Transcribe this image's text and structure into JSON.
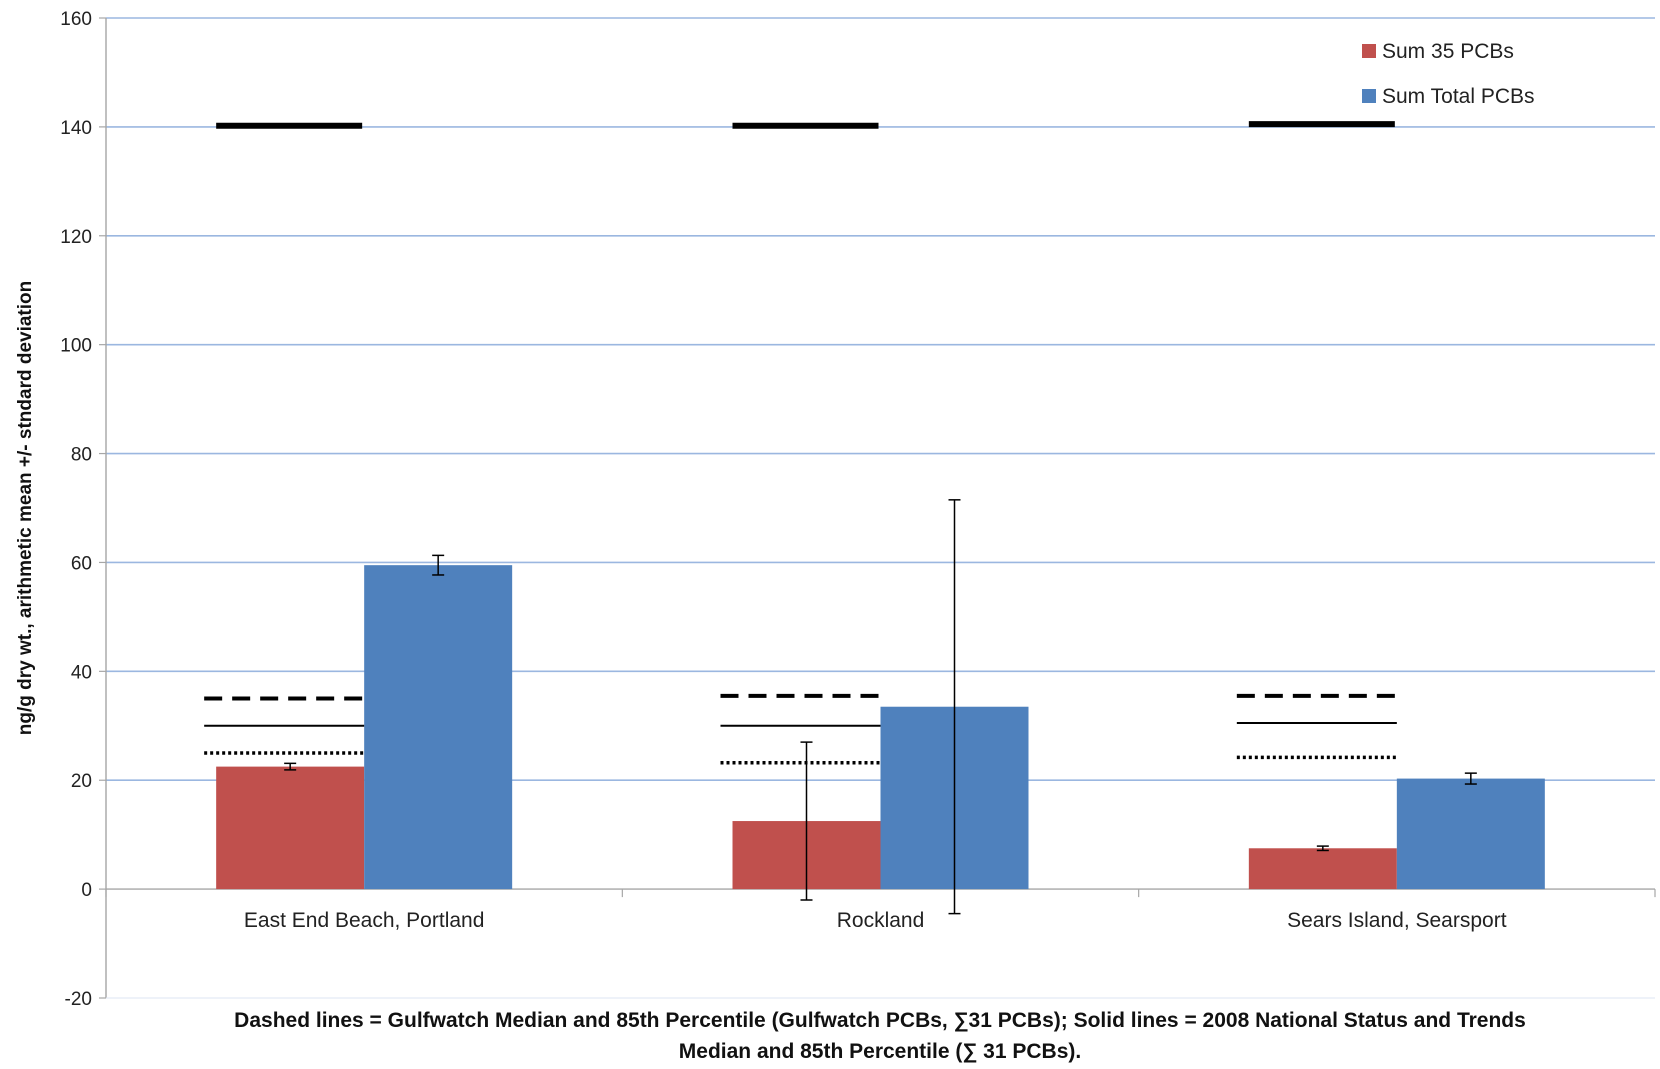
{
  "chart_data": {
    "type": "bar",
    "ylabel": "ng/g dry wt., arithmetic mean +/- stndard deviation",
    "xlabel": "",
    "ylim": [
      -20,
      160
    ],
    "y_ticks": [
      "160",
      "140",
      "120",
      "100",
      "80",
      "60",
      "40",
      "20",
      "0",
      "-20"
    ],
    "grid": "horizontal",
    "legend_position": "top-right",
    "categories": [
      "East End Beach, Portland",
      "Rockland",
      "Sears Island, Searsport"
    ],
    "series": [
      {
        "name": "Sum 35 PCBs",
        "color": "#c0504d",
        "values": [
          22.5,
          12.5,
          7.5
        ],
        "error": [
          0.6,
          14.5,
          0.4
        ]
      },
      {
        "name": "Sum Total PCBs",
        "color": "#4f81bd",
        "values": [
          59.5,
          33.5,
          20.3
        ],
        "error": [
          1.8,
          38,
          1
        ]
      }
    ],
    "reference_lines": [
      {
        "style": "dashed",
        "values": [
          35,
          35.5,
          35.5
        ]
      },
      {
        "style": "solid-thin",
        "values": [
          30,
          30,
          30.5
        ]
      },
      {
        "style": "dotted",
        "values": [
          25,
          23.2,
          24.2
        ]
      },
      {
        "style": "solid-thick",
        "values": [
          140.2,
          140.2,
          140.5
        ]
      }
    ],
    "caption_lines": [
      "Dashed lines  = Gulfwatch Median and 85th Percentile (Gulfwatch PCBs, ∑31  PCBs); Solid lines = 2008 National Status and Trends",
      "Median and 85th Percentile (∑ 31 PCBs)."
    ],
    "colors": {
      "grid": "#9bb7e0",
      "axis": "#a6a6a6",
      "reference": "#000000"
    }
  }
}
